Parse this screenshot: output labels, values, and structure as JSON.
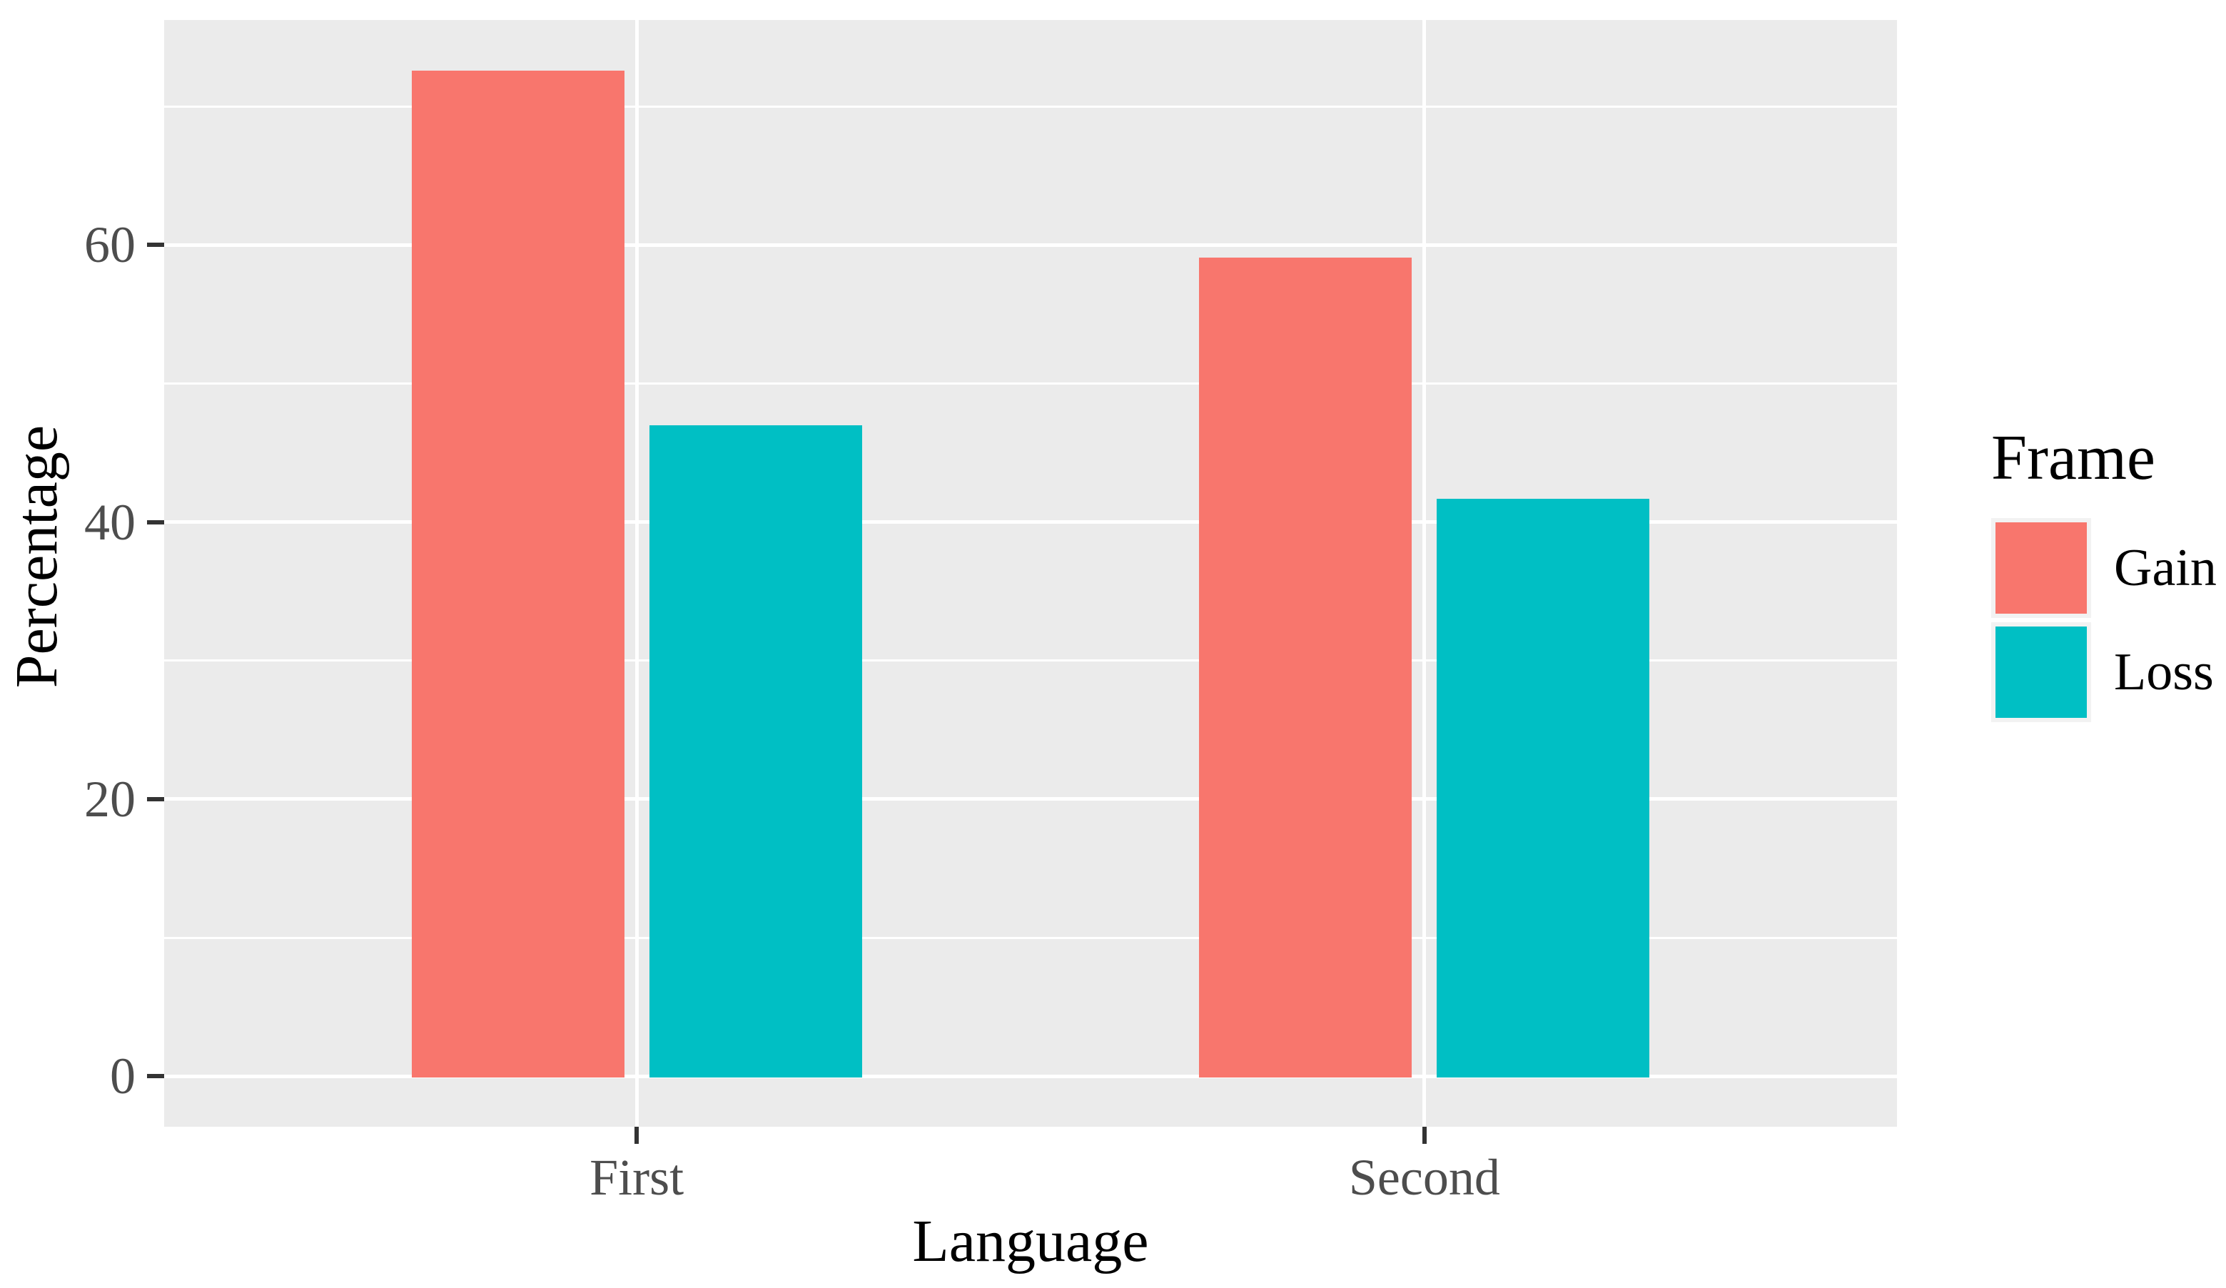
{
  "chart_data": {
    "type": "bar",
    "title": "",
    "xlabel": "Language",
    "ylabel": "Percentage",
    "categories": [
      "First",
      "Second"
    ],
    "series": [
      {
        "name": "Gain",
        "color": "#F8766D",
        "values": [
          72.6,
          59.1
        ]
      },
      {
        "name": "Loss",
        "color": "#00BFC4",
        "values": [
          47.0,
          41.7
        ]
      }
    ],
    "legend": {
      "title": "Frame",
      "position": "right",
      "entries": [
        {
          "label": "Gain",
          "color": "#F8766D"
        },
        {
          "label": "Loss",
          "color": "#00BFC4"
        }
      ]
    },
    "y_axis": {
      "major_ticks": [
        0,
        20,
        40,
        60
      ],
      "minor_ticks": [
        10,
        30,
        50,
        70
      ],
      "lim": [
        -3.65,
        76.25
      ],
      "grid": true
    },
    "x_axis": {
      "tick_labels": [
        "First",
        "Second"
      ]
    },
    "style": {
      "panel_bg": "#EBEBEB",
      "grid_color": "#FFFFFF",
      "axis_text_color": "#4D4D4D",
      "axis_title_color": "#000000",
      "tick_mark_color": "#333333",
      "legend_key_bg": "#F2F2F2",
      "background": "#FFFFFF"
    }
  }
}
